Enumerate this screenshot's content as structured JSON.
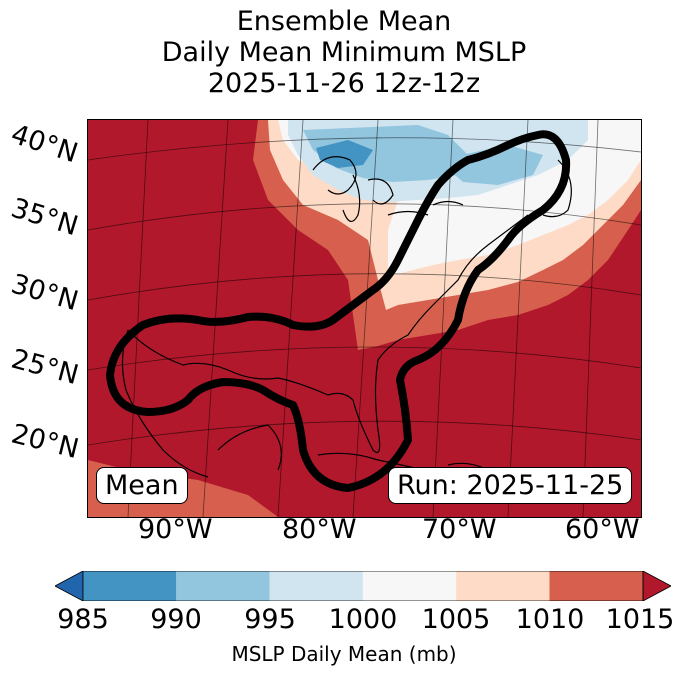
{
  "title": {
    "line1": "Ensemble Mean",
    "line2": "Daily Mean Minimum MSLP",
    "line3": "2025-11-26 12z-12z"
  },
  "map": {
    "lat_labels": [
      "40°N",
      "35°N",
      "30°N",
      "25°N",
      "20°N"
    ],
    "lon_labels": [
      "90°W",
      "80°W",
      "70°W",
      "60°W"
    ],
    "mean_label": "Mean",
    "run_label": "Run: 2025-11-25"
  },
  "colorbar": {
    "ticks": [
      "985",
      "990",
      "995",
      "1000",
      "1005",
      "1010",
      "1015"
    ],
    "label": "MSLP Daily Mean (mb)",
    "colors": {
      "below_985": "#2166ac",
      "985_990": "#4393c3",
      "990_995": "#92c5de",
      "995_1000": "#d1e5f0",
      "1000_1005": "#f7f7f7",
      "1005_1010": "#fddbc7",
      "1010_1015": "#d6604d",
      "above_1015": "#b2182b"
    }
  }
}
